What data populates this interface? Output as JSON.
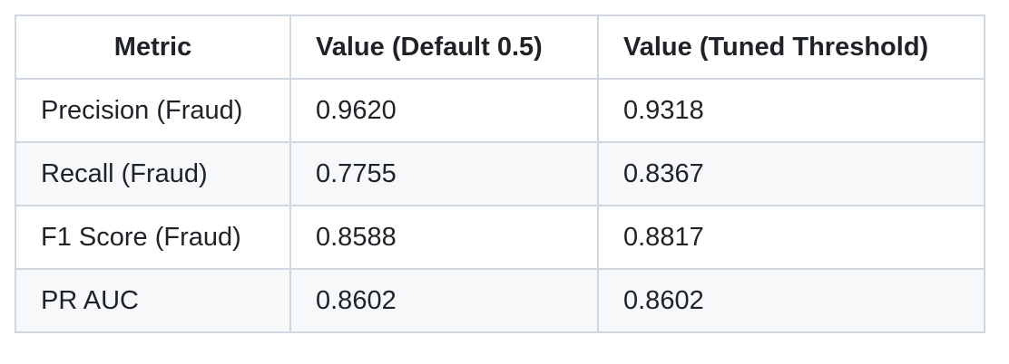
{
  "table": {
    "headers": [
      "Metric",
      "Value (Default 0.5)",
      "Value (Tuned Threshold)"
    ],
    "rows": [
      [
        "Precision (Fraud)",
        "0.9620",
        "0.9318"
      ],
      [
        "Recall (Fraud)",
        "0.7755",
        "0.8367"
      ],
      [
        "F1 Score (Fraud)",
        "0.8588",
        "0.8817"
      ],
      [
        "PR AUC",
        "0.8602",
        "0.8602"
      ]
    ]
  }
}
